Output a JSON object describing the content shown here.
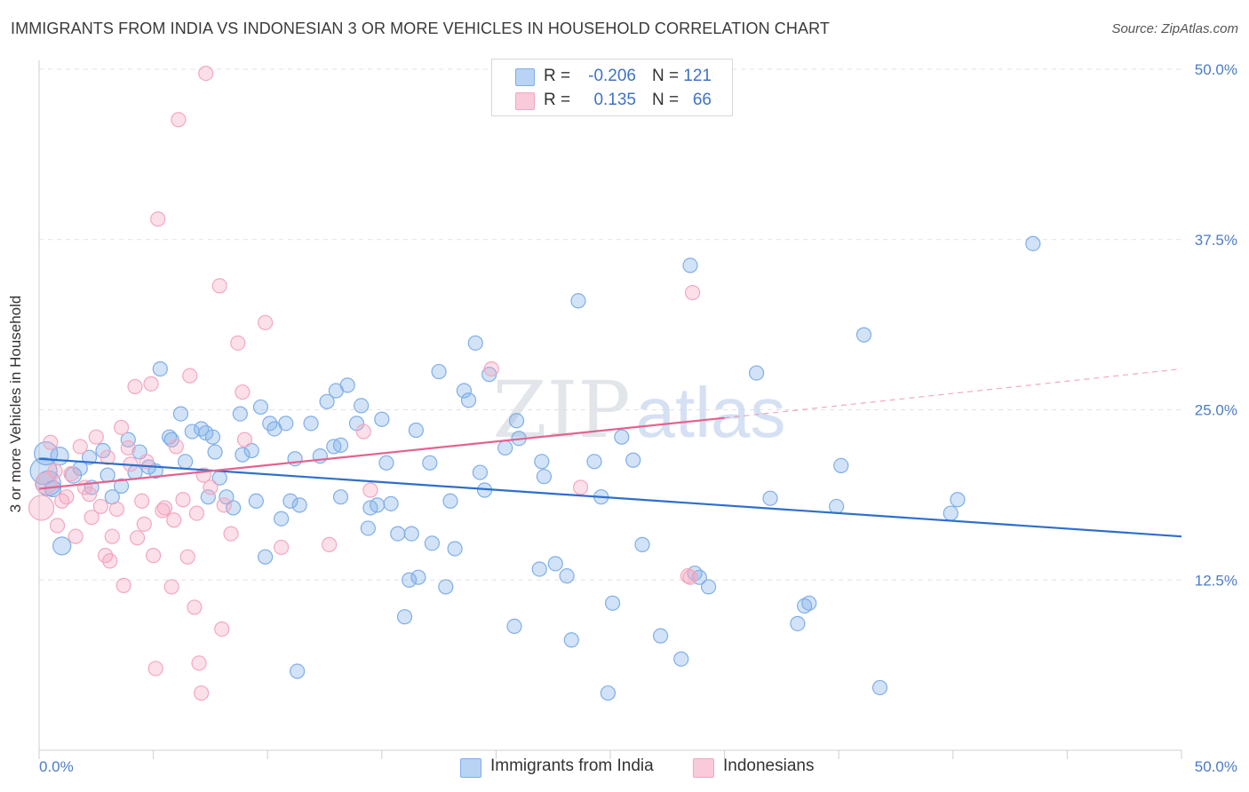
{
  "header": {
    "title": "IMMIGRANTS FROM INDIA VS INDONESIAN 3 OR MORE VEHICLES IN HOUSEHOLD CORRELATION CHART",
    "source": "Source: ZipAtlas.com"
  },
  "stats_legend": {
    "rows": [
      {
        "r_label": "R =",
        "r_value": "-0.206",
        "n_label": "N =",
        "n_value": "121"
      },
      {
        "r_label": "R =",
        "r_value": "0.135",
        "n_label": "N =",
        "n_value": "66"
      }
    ]
  },
  "watermark": {
    "zip": "ZIP",
    "atlas": "atlas"
  },
  "chart_data": {
    "type": "scatter",
    "ylabel": "3 or more Vehicles in Household",
    "xlim": [
      0,
      50
    ],
    "ylim": [
      0,
      50
    ],
    "y_ticks": [
      {
        "value": 12.5,
        "label": "12.5%"
      },
      {
        "value": 25.0,
        "label": "25.0%"
      },
      {
        "value": 37.5,
        "label": "37.5%"
      },
      {
        "value": 50.0,
        "label": "50.0%"
      }
    ],
    "x_tick_labels": {
      "min": "0.0%",
      "max": "50.0%"
    },
    "grid": "horizontal dashed",
    "legend_position": "bottom",
    "series": [
      {
        "name": "Immigrants from India",
        "color": "#7faee8",
        "line_color": "#2e6fcb",
        "trend": {
          "x0": 0.0,
          "y0": 21.4,
          "x1": 50.0,
          "y1": 15.7
        },
        "points": [
          [
            0.2,
            20.5,
            15
          ],
          [
            0.4,
            19.6,
            14
          ],
          [
            0.3,
            21.8,
            13
          ],
          [
            0.9,
            21.6,
            10
          ],
          [
            1.0,
            15.0,
            10
          ],
          [
            0.6,
            19.2,
            9
          ],
          [
            1.5,
            20.2,
            9
          ],
          [
            1.8,
            20.7,
            8
          ],
          [
            2.2,
            21.5,
            8
          ],
          [
            2.3,
            19.3,
            8
          ],
          [
            2.8,
            22.0,
            8
          ],
          [
            3.0,
            20.2,
            8
          ],
          [
            3.2,
            18.6,
            8
          ],
          [
            3.6,
            19.4,
            8
          ],
          [
            3.9,
            22.8,
            8
          ],
          [
            4.2,
            20.4,
            8
          ],
          [
            4.4,
            21.9,
            8
          ],
          [
            4.8,
            20.8,
            8
          ],
          [
            5.1,
            20.5,
            8
          ],
          [
            5.7,
            23.0,
            8
          ],
          [
            5.8,
            22.8,
            8
          ],
          [
            5.3,
            28.0,
            8
          ],
          [
            6.2,
            24.7,
            8
          ],
          [
            6.4,
            21.2,
            8
          ],
          [
            6.7,
            23.4,
            8
          ],
          [
            7.1,
            23.6,
            8
          ],
          [
            7.3,
            23.3,
            8
          ],
          [
            7.4,
            18.6,
            8
          ],
          [
            7.6,
            23.0,
            8
          ],
          [
            7.7,
            21.9,
            8
          ],
          [
            7.9,
            20.0,
            8
          ],
          [
            8.2,
            18.6,
            8
          ],
          [
            8.5,
            17.8,
            8
          ],
          [
            8.8,
            24.7,
            8
          ],
          [
            8.9,
            21.7,
            8
          ],
          [
            9.3,
            22.0,
            8
          ],
          [
            9.5,
            18.3,
            8
          ],
          [
            9.7,
            25.2,
            8
          ],
          [
            9.9,
            14.2,
            8
          ],
          [
            10.1,
            24.0,
            8
          ],
          [
            10.3,
            23.6,
            8
          ],
          [
            10.6,
            17.0,
            8
          ],
          [
            10.8,
            24.0,
            8
          ],
          [
            11.0,
            18.3,
            8
          ],
          [
            11.2,
            21.4,
            8
          ],
          [
            11.4,
            18.0,
            8
          ],
          [
            11.9,
            24.0,
            8
          ],
          [
            12.3,
            21.6,
            8
          ],
          [
            11.3,
            5.8,
            8
          ],
          [
            12.6,
            25.6,
            8
          ],
          [
            12.9,
            22.3,
            8
          ],
          [
            13.0,
            26.4,
            8
          ],
          [
            13.2,
            22.4,
            8
          ],
          [
            13.2,
            18.6,
            8
          ],
          [
            13.5,
            26.8,
            8
          ],
          [
            13.9,
            24.0,
            8
          ],
          [
            14.1,
            25.3,
            8
          ],
          [
            14.4,
            16.3,
            8
          ],
          [
            14.5,
            17.8,
            8
          ],
          [
            14.8,
            18.0,
            8
          ],
          [
            15.0,
            24.3,
            8
          ],
          [
            15.2,
            21.1,
            8
          ],
          [
            15.4,
            18.1,
            8
          ],
          [
            15.7,
            15.9,
            8
          ],
          [
            16.0,
            9.8,
            8
          ],
          [
            16.2,
            12.5,
            8
          ],
          [
            16.3,
            15.9,
            8
          ],
          [
            16.5,
            23.5,
            8
          ],
          [
            16.6,
            12.7,
            8
          ],
          [
            17.1,
            21.1,
            8
          ],
          [
            17.2,
            15.2,
            8
          ],
          [
            17.5,
            27.8,
            8
          ],
          [
            17.8,
            12.0,
            8
          ],
          [
            18.0,
            18.3,
            8
          ],
          [
            18.2,
            14.8,
            8
          ],
          [
            18.6,
            26.4,
            8
          ],
          [
            18.8,
            25.7,
            8
          ],
          [
            19.1,
            29.9,
            8
          ],
          [
            19.3,
            20.4,
            8
          ],
          [
            19.5,
            19.1,
            8
          ],
          [
            19.7,
            27.6,
            8
          ],
          [
            20.4,
            22.2,
            8
          ],
          [
            20.8,
            9.1,
            8
          ],
          [
            20.9,
            24.2,
            8
          ],
          [
            21.0,
            22.9,
            8
          ],
          [
            21.9,
            13.3,
            8
          ],
          [
            22.0,
            21.2,
            8
          ],
          [
            22.1,
            20.1,
            8
          ],
          [
            22.6,
            13.7,
            8
          ],
          [
            23.1,
            12.8,
            8
          ],
          [
            23.3,
            8.1,
            8
          ],
          [
            23.6,
            33.0,
            8
          ],
          [
            24.3,
            21.2,
            8
          ],
          [
            24.6,
            18.6,
            8
          ],
          [
            24.9,
            4.2,
            8
          ],
          [
            25.1,
            10.8,
            8
          ],
          [
            26.4,
            15.1,
            8
          ],
          [
            27.2,
            8.4,
            8
          ],
          [
            28.1,
            6.7,
            8
          ],
          [
            28.5,
            35.6,
            8
          ],
          [
            28.7,
            13.0,
            8
          ],
          [
            28.9,
            12.7,
            8
          ],
          [
            29.3,
            12.0,
            8
          ],
          [
            31.4,
            27.7,
            8
          ],
          [
            32.0,
            18.5,
            8
          ],
          [
            33.2,
            9.3,
            8
          ],
          [
            33.5,
            10.6,
            8
          ],
          [
            33.7,
            10.8,
            8
          ],
          [
            34.9,
            17.9,
            8
          ],
          [
            35.1,
            20.9,
            8
          ],
          [
            36.1,
            30.5,
            8
          ],
          [
            36.8,
            4.6,
            8
          ],
          [
            39.9,
            17.4,
            8
          ],
          [
            40.2,
            18.4,
            8
          ],
          [
            43.5,
            37.2,
            8
          ],
          [
            26.0,
            21.3,
            8
          ],
          [
            25.5,
            23.0,
            8
          ]
        ]
      },
      {
        "name": "Indonesians",
        "color": "#f4a7bf",
        "line_color": "#e4638e",
        "trend": {
          "x0": 0.0,
          "y0": 19.2,
          "x1": 30.0,
          "y1": 24.4
        },
        "trend_ext": {
          "x0": 30.0,
          "y0": 24.4,
          "x1": 50.0,
          "y1": 28.0
        },
        "points": [
          [
            0.1,
            17.8,
            14
          ],
          [
            0.3,
            19.6,
            12
          ],
          [
            0.5,
            22.6,
            8
          ],
          [
            0.7,
            20.5,
            8
          ],
          [
            0.8,
            16.5,
            8
          ],
          [
            1.0,
            18.3,
            8
          ],
          [
            1.2,
            18.6,
            8
          ],
          [
            1.4,
            20.3,
            8
          ],
          [
            1.6,
            15.7,
            8
          ],
          [
            1.8,
            22.3,
            8
          ],
          [
            2.0,
            19.3,
            8
          ],
          [
            2.2,
            18.8,
            8
          ],
          [
            2.3,
            17.1,
            8
          ],
          [
            2.5,
            23.0,
            8
          ],
          [
            2.7,
            17.9,
            8
          ],
          [
            2.9,
            14.3,
            8
          ],
          [
            3.0,
            21.5,
            8
          ],
          [
            3.2,
            15.7,
            8
          ],
          [
            3.4,
            17.7,
            8
          ],
          [
            3.6,
            23.7,
            8
          ],
          [
            3.7,
            12.1,
            8
          ],
          [
            3.9,
            22.2,
            8
          ],
          [
            4.0,
            21.0,
            8
          ],
          [
            4.2,
            26.7,
            8
          ],
          [
            4.3,
            15.6,
            8
          ],
          [
            4.5,
            18.3,
            8
          ],
          [
            4.7,
            21.2,
            8
          ],
          [
            4.9,
            26.9,
            8
          ],
          [
            5.0,
            14.3,
            8
          ],
          [
            5.1,
            6.0,
            8
          ],
          [
            5.2,
            39.0,
            8
          ],
          [
            5.4,
            17.6,
            8
          ],
          [
            5.5,
            17.8,
            8
          ],
          [
            5.8,
            12.0,
            8
          ],
          [
            6.0,
            22.3,
            8
          ],
          [
            6.1,
            46.3,
            8
          ],
          [
            6.3,
            18.4,
            8
          ],
          [
            6.5,
            14.2,
            8
          ],
          [
            6.6,
            27.5,
            8
          ],
          [
            6.8,
            10.5,
            8
          ],
          [
            7.0,
            6.4,
            8
          ],
          [
            7.1,
            4.2,
            8
          ],
          [
            7.3,
            49.7,
            8
          ],
          [
            7.5,
            19.3,
            8
          ],
          [
            7.9,
            34.1,
            8
          ],
          [
            8.0,
            8.9,
            8
          ],
          [
            8.4,
            15.9,
            8
          ],
          [
            8.7,
            29.9,
            8
          ],
          [
            8.9,
            26.3,
            8
          ],
          [
            9.0,
            22.8,
            8
          ],
          [
            9.9,
            31.4,
            8
          ],
          [
            10.6,
            14.9,
            8
          ],
          [
            12.7,
            15.1,
            8
          ],
          [
            14.2,
            23.4,
            8
          ],
          [
            14.5,
            19.1,
            8
          ],
          [
            19.8,
            28.0,
            8
          ],
          [
            23.7,
            19.3,
            8
          ],
          [
            28.5,
            12.7,
            8
          ],
          [
            28.6,
            33.6,
            8
          ],
          [
            28.4,
            12.8,
            8
          ],
          [
            3.1,
            13.9,
            8
          ],
          [
            4.6,
            16.6,
            8
          ],
          [
            5.9,
            16.9,
            8
          ],
          [
            6.9,
            17.4,
            8
          ],
          [
            7.2,
            20.2,
            8
          ],
          [
            8.1,
            18.0,
            8
          ]
        ]
      }
    ]
  }
}
